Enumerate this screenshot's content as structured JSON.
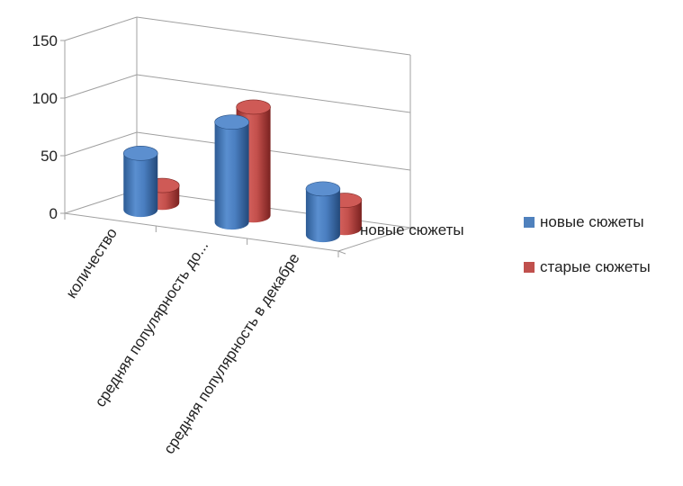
{
  "chart_data": {
    "type": "bar",
    "title": "",
    "xlabel": "",
    "ylabel": "",
    "ylim": [
      0,
      150
    ],
    "yticks": [
      "0",
      "50",
      "100",
      "150"
    ],
    "categories": [
      "количество",
      "средняя популярность до...",
      "средняя популярность в декабре"
    ],
    "series": [
      {
        "name": "новые сюжеты",
        "values": [
          49,
          87,
          40
        ],
        "color": "#4f81bd"
      },
      {
        "name": "старые сюжеты",
        "values": [
          15,
          94,
          24
        ],
        "color": "#c0504d"
      }
    ],
    "depth_axis_label": "новые сюжеты",
    "grid": true,
    "legend_position": "right",
    "style": "3d-cylinders"
  }
}
